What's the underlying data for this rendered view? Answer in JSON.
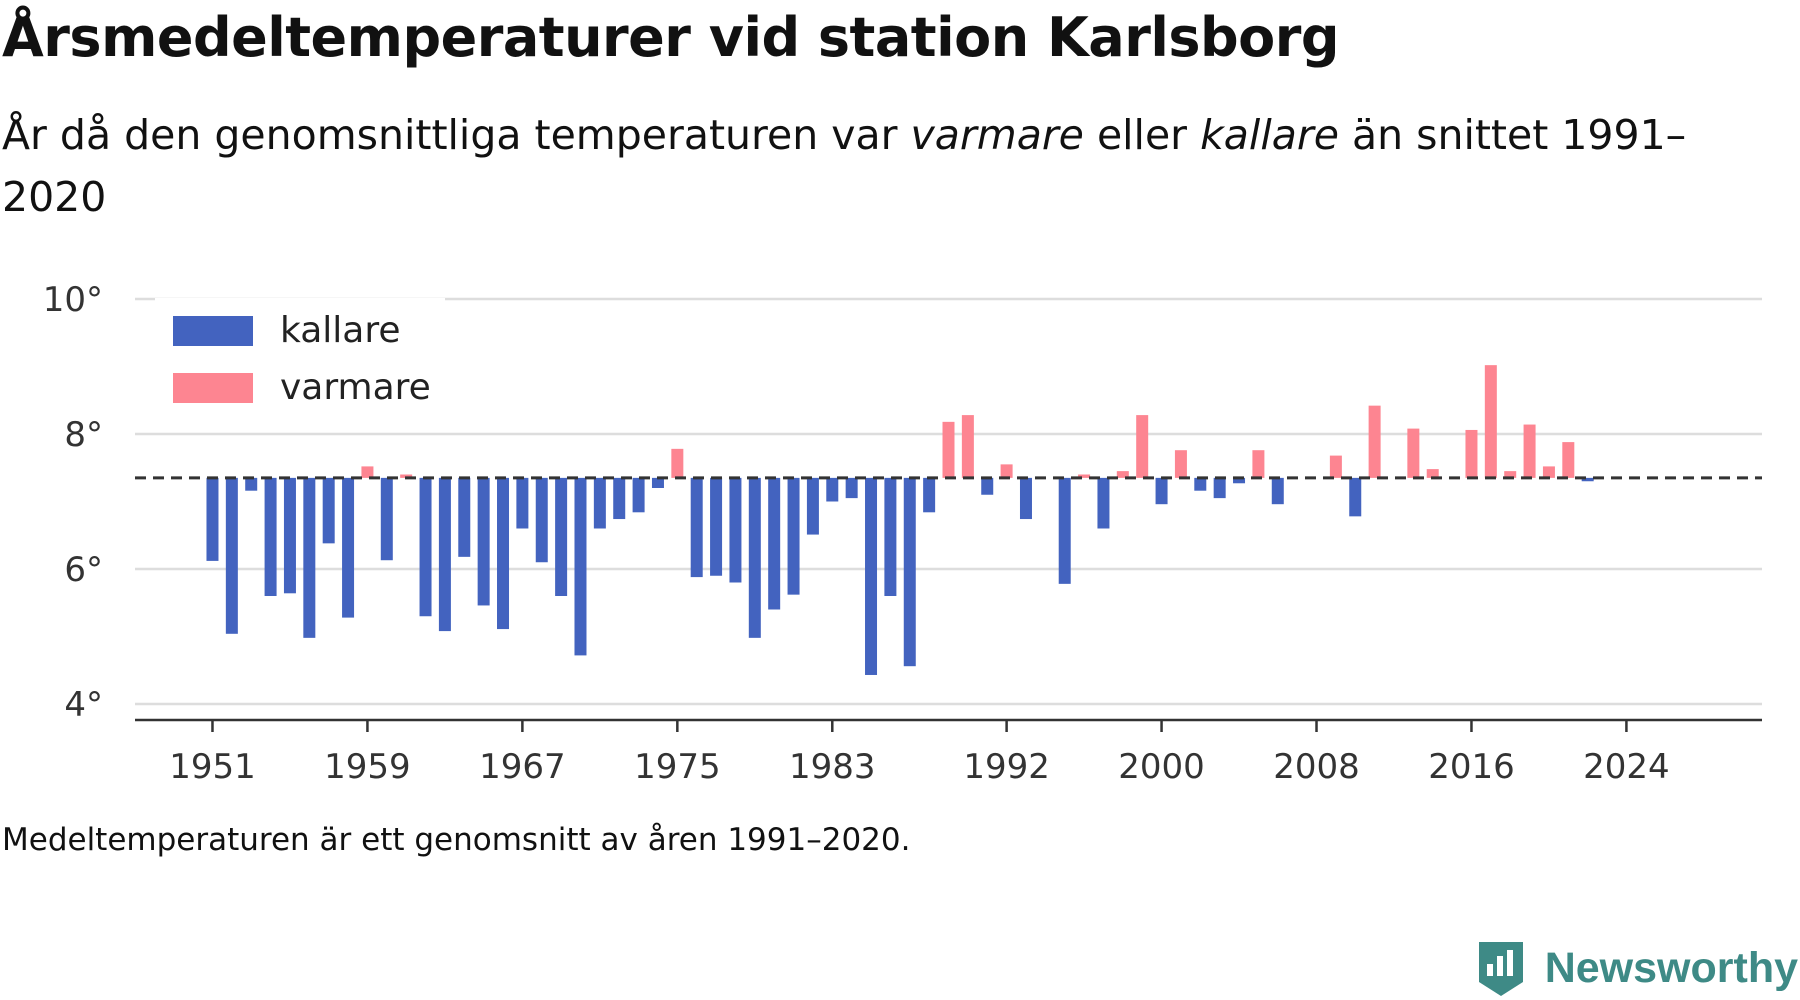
{
  "title": "Årsmedeltemperaturer vid station Karlsborg",
  "subtitle": {
    "part1": "År då den genomsnittliga temperaturen var ",
    "em1": "varmare",
    "part2": " eller ",
    "em2": "kallare",
    "part3": " än snittet 1991–2020"
  },
  "footnote": "Medeltemperaturen är ett genomsnitt av åren 1991–2020.",
  "brand": {
    "name": "Newsworthy",
    "icon": "newsworthy-logo-icon",
    "color": "#3e8a86"
  },
  "chart_data": {
    "type": "bar",
    "baseline": 7.35,
    "ylim": [
      4,
      10
    ],
    "yticks": [
      4,
      6,
      8,
      10
    ],
    "ytick_labels": [
      "4°",
      "6°",
      "8°",
      "10°"
    ],
    "xlim": [
      1947,
      2031
    ],
    "xticks": [
      1951,
      1959,
      1967,
      1975,
      1983,
      1992,
      2000,
      2008,
      2016,
      2024
    ],
    "xtick_labels": [
      "1951",
      "1959",
      "1967",
      "1975",
      "1983",
      "1992",
      "2000",
      "2008",
      "2016",
      "2024"
    ],
    "grid": true,
    "legend": {
      "position": "top-left",
      "items": [
        {
          "label": "kallare",
          "color": "#4363bf"
        },
        {
          "label": "varmare",
          "color": "#fd8591"
        }
      ]
    },
    "colors": {
      "kallare": "#4363bf",
      "varmare": "#fd8591"
    },
    "years": [
      1951,
      1952,
      1953,
      1954,
      1955,
      1956,
      1957,
      1958,
      1959,
      1960,
      1961,
      1962,
      1963,
      1964,
      1965,
      1966,
      1967,
      1968,
      1969,
      1970,
      1971,
      1972,
      1973,
      1974,
      1975,
      1976,
      1977,
      1978,
      1979,
      1980,
      1981,
      1982,
      1983,
      1984,
      1985,
      1986,
      1987,
      1988,
      1989,
      1990,
      1991,
      1992,
      1993,
      1995,
      1996,
      1997,
      1998,
      1999,
      2000,
      2001,
      2002,
      2003,
      2004,
      2005,
      2006,
      2009,
      2010,
      2011,
      2013,
      2014,
      2016,
      2017,
      2018,
      2019,
      2020,
      2021,
      2022
    ],
    "values": [
      6.12,
      5.04,
      7.16,
      5.6,
      5.64,
      4.98,
      6.38,
      5.28,
      7.52,
      6.13,
      7.4,
      5.3,
      5.08,
      6.18,
      5.46,
      5.11,
      6.6,
      6.1,
      5.6,
      4.72,
      6.6,
      6.74,
      6.84,
      7.2,
      7.78,
      5.88,
      5.9,
      5.8,
      4.98,
      5.4,
      5.62,
      6.51,
      7.0,
      7.05,
      4.43,
      5.6,
      4.56,
      6.84,
      8.18,
      8.28,
      7.1,
      7.55,
      6.74,
      5.78,
      7.4,
      6.6,
      7.45,
      8.28,
      6.96,
      7.76,
      7.16,
      7.05,
      7.27,
      7.76,
      6.96,
      7.68,
      6.78,
      8.42,
      8.08,
      7.48,
      8.06,
      9.02,
      7.45,
      8.14,
      7.52,
      7.88,
      7.3
    ]
  }
}
